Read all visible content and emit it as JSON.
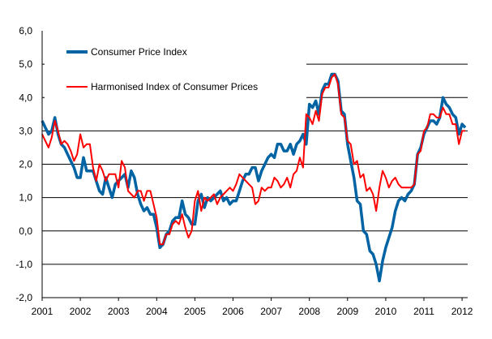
{
  "chart_data": {
    "type": "line",
    "title": "",
    "xlabel": "",
    "ylabel": "",
    "x_start": "2001-01",
    "x_frequency": "monthly",
    "x_ticks": [
      "2001",
      "2002",
      "2003",
      "2004",
      "2005",
      "2006",
      "2007",
      "2008",
      "2009",
      "2010",
      "2011",
      "2012"
    ],
    "y_ticks": [
      "6,0",
      "5,0",
      "4,0",
      "3,0",
      "2,0",
      "1,0",
      "0,0",
      "-1,0",
      "-2,0"
    ],
    "ylim": [
      -2,
      6
    ],
    "grid": "horizontal",
    "legend_placement": "top-left",
    "series": [
      {
        "name": "Consumer Price Index",
        "color": "#0063A3",
        "values": [
          3.3,
          3.1,
          2.9,
          3.0,
          3.4,
          2.9,
          2.6,
          2.5,
          2.3,
          2.1,
          1.9,
          1.6,
          1.6,
          2.2,
          1.8,
          1.8,
          1.8,
          1.5,
          1.2,
          1.1,
          1.6,
          1.3,
          1.0,
          1.4,
          1.5,
          1.6,
          1.7,
          1.3,
          1.8,
          1.6,
          1.1,
          0.8,
          0.6,
          0.7,
          0.5,
          0.5,
          0.1,
          -0.5,
          -0.4,
          -0.1,
          0.0,
          0.3,
          0.4,
          0.4,
          0.9,
          0.5,
          0.4,
          0.2,
          0.2,
          0.9,
          1.1,
          0.7,
          1.0,
          0.9,
          1.0,
          1.1,
          1.2,
          0.9,
          1.0,
          0.8,
          0.9,
          0.9,
          1.2,
          1.5,
          1.7,
          1.7,
          1.9,
          1.9,
          1.5,
          1.8,
          2.0,
          2.2,
          2.3,
          2.2,
          2.6,
          2.6,
          2.4,
          2.4,
          2.6,
          2.3,
          2.6,
          2.7,
          2.9,
          2.6,
          3.8,
          3.7,
          3.9,
          3.5,
          4.2,
          4.4,
          4.4,
          4.7,
          4.7,
          4.5,
          3.6,
          3.5,
          2.6,
          2.1,
          1.6,
          0.9,
          0.8,
          0.0,
          -0.1,
          -0.6,
          -0.7,
          -1.0,
          -1.5,
          -0.9,
          -0.5,
          -0.2,
          0.1,
          0.6,
          0.9,
          1.0,
          0.9,
          1.1,
          1.2,
          1.4,
          2.3,
          2.5,
          2.9,
          3.1,
          3.3,
          3.3,
          3.2,
          3.4,
          4.0,
          3.8,
          3.7,
          3.5,
          3.4,
          2.9,
          3.2,
          3.1
        ]
      },
      {
        "name": "Harmonised Index of Consumer Prices",
        "color": "#FF0000",
        "values": [
          2.9,
          2.7,
          2.5,
          2.8,
          3.3,
          3.0,
          2.6,
          2.7,
          2.6,
          2.4,
          2.1,
          2.3,
          2.9,
          2.5,
          2.6,
          2.6,
          1.9,
          1.5,
          2.0,
          1.8,
          1.5,
          1.7,
          1.7,
          1.7,
          1.3,
          2.1,
          1.9,
          1.2,
          1.1,
          1.0,
          1.2,
          1.2,
          0.9,
          1.2,
          1.2,
          0.8,
          0.4,
          -0.4,
          -0.4,
          -0.1,
          -0.1,
          0.2,
          0.3,
          0.2,
          0.5,
          0.1,
          -0.2,
          0.0,
          0.9,
          1.2,
          0.6,
          1.0,
          0.9,
          1.0,
          1.1,
          0.8,
          1.0,
          1.1,
          1.2,
          1.3,
          1.2,
          1.4,
          1.7,
          1.6,
          1.5,
          1.4,
          1.3,
          0.8,
          0.9,
          1.3,
          1.2,
          1.3,
          1.3,
          1.6,
          1.5,
          1.3,
          1.4,
          1.6,
          1.3,
          1.7,
          1.8,
          2.2,
          1.9,
          3.5,
          3.4,
          3.2,
          3.6,
          3.3,
          4.1,
          4.3,
          4.3,
          4.6,
          4.7,
          4.4,
          3.5,
          3.4,
          2.7,
          2.6,
          2.0,
          2.1,
          1.6,
          1.7,
          1.2,
          1.3,
          1.1,
          0.6,
          1.3,
          1.8,
          1.6,
          1.3,
          1.5,
          1.6,
          1.4,
          1.3,
          1.3,
          1.3,
          1.3,
          1.4,
          2.3,
          2.4,
          3.0,
          3.1,
          3.5,
          3.5,
          3.4,
          3.4,
          3.7,
          3.5,
          3.5,
          3.2,
          3.2,
          2.6,
          3.0,
          3.0
        ]
      }
    ]
  }
}
